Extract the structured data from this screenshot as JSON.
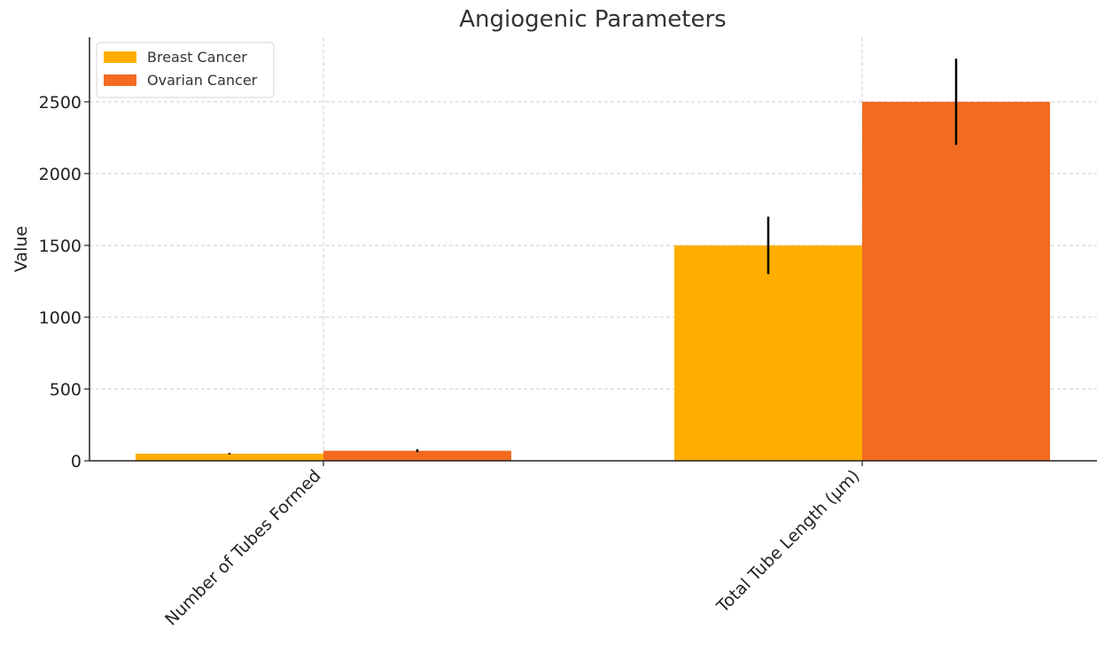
{
  "chart_data": {
    "type": "bar",
    "title": "Angiogenic Parameters",
    "xlabel": "",
    "ylabel": "Value",
    "categories": [
      "Number of Tubes Formed",
      "Total Tube Length (µm)"
    ],
    "series": [
      {
        "name": "Breast Cancer",
        "values": [
          50,
          1500
        ],
        "errors": [
          5,
          200
        ],
        "color": "#FFAE00"
      },
      {
        "name": "Ovarian Cancer",
        "values": [
          70,
          2500
        ],
        "errors": [
          10,
          300
        ],
        "color": "#F26B21"
      }
    ],
    "yticks": [
      0,
      500,
      1000,
      1500,
      2000,
      2500
    ],
    "ylim": [
      0,
      2950
    ],
    "grid": true,
    "legend_position": "top-left"
  }
}
